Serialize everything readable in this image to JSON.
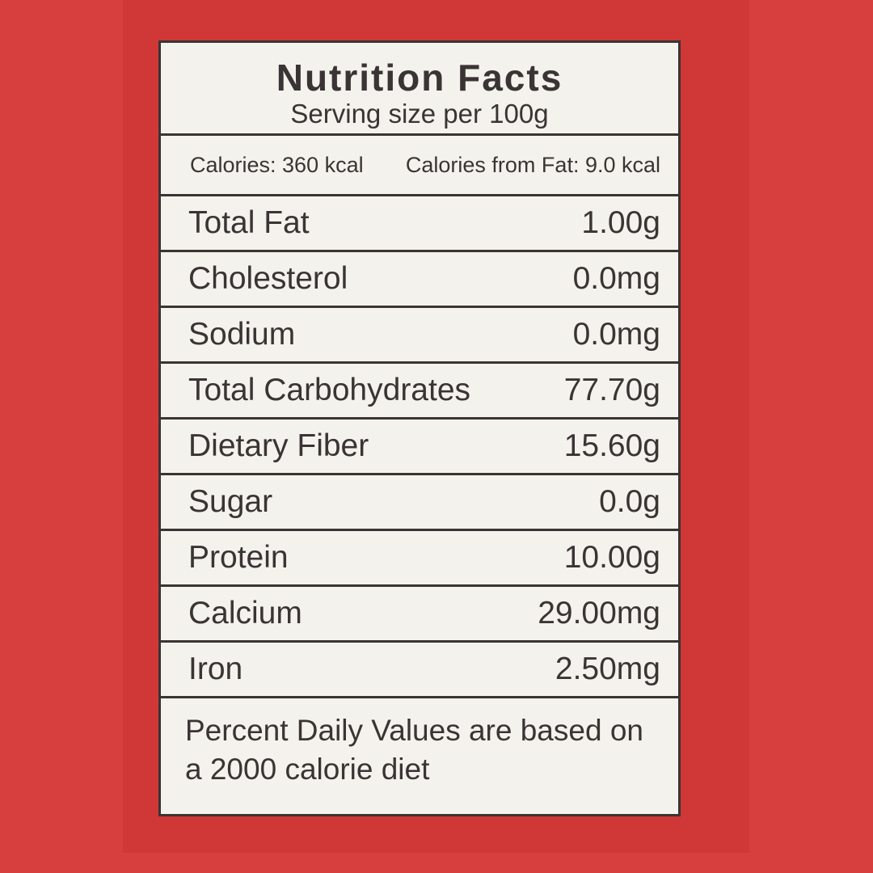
{
  "header": {
    "title": "Nutrition Facts",
    "subtitle": "Serving size per 100g"
  },
  "calories": [
    "Calories: 360 kcal",
    "Calories from Fat: 9.0 kcal"
  ],
  "table": {
    "rows": [
      [
        "Total Fat",
        "1.00g"
      ],
      [
        "Cholesterol",
        "0.0mg"
      ],
      [
        "Sodium",
        "0.0mg"
      ],
      [
        "Total Carbohydrates",
        "77.70g"
      ],
      [
        "Dietary Fiber",
        "15.60g"
      ],
      [
        "Sugar",
        "0.0g"
      ],
      [
        "Protein",
        "10.00g"
      ],
      [
        "Calcium",
        "29.00mg"
      ],
      [
        "Iron",
        "2.50mg"
      ]
    ]
  },
  "footer": "Percent Daily Values are based on a 2000 calorie diet"
}
